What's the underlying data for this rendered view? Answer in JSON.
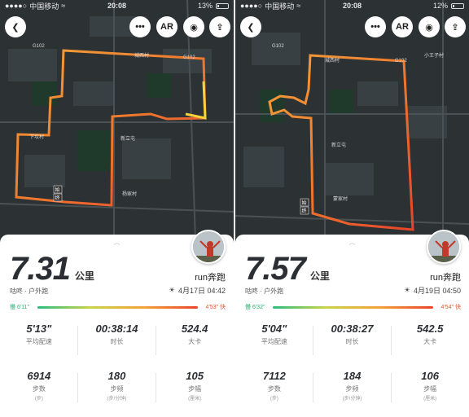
{
  "panels": [
    {
      "status": {
        "carrier": "中国移动",
        "time": "20:08",
        "battery": "13%",
        "battery_level": 0.13
      },
      "map_labels": [
        "G102",
        "G102",
        "城西村",
        "新立屯",
        "下坎村",
        "杨家村"
      ],
      "markers": [
        "始",
        "终"
      ],
      "top_buttons": {
        "more": "•••",
        "ar": "AR"
      },
      "distance": "7.31",
      "distance_unit": "公里",
      "activity": "咕咚 · 户外跑",
      "username": "run奔跑",
      "datetime": "4月17日 04:42",
      "pace_slow": "慢 6'11\"",
      "pace_fast": "4'53\" 快",
      "stats": [
        {
          "value": "5'13\"",
          "label": "平均配速",
          "sub": ""
        },
        {
          "value": "00:38:14",
          "label": "时长",
          "sub": ""
        },
        {
          "value": "524.4",
          "label": "大卡",
          "sub": ""
        },
        {
          "value": "6914",
          "label": "步数",
          "sub": "(步)"
        },
        {
          "value": "180",
          "label": "步频",
          "sub": "(步/分钟)"
        },
        {
          "value": "105",
          "label": "步幅",
          "sub": "(厘米)"
        }
      ]
    },
    {
      "status": {
        "carrier": "中国移动",
        "time": "20:08",
        "battery": "12%",
        "battery_level": 0.12
      },
      "map_labels": [
        "G102",
        "G102",
        "城西村",
        "小王子村",
        "新立屯",
        "蒙家村"
      ],
      "markers": [
        "始",
        "终"
      ],
      "top_buttons": {
        "more": "•••",
        "ar": "AR"
      },
      "distance": "7.57",
      "distance_unit": "公里",
      "activity": "咕咚 · 户外跑",
      "username": "run奔跑",
      "datetime": "4月19日 04:50",
      "pace_slow": "慢 6'32\"",
      "pace_fast": "4'54\" 快",
      "stats": [
        {
          "value": "5'04\"",
          "label": "平均配速",
          "sub": ""
        },
        {
          "value": "00:38:27",
          "label": "时长",
          "sub": ""
        },
        {
          "value": "542.5",
          "label": "大卡",
          "sub": ""
        },
        {
          "value": "7112",
          "label": "步数",
          "sub": "(步)"
        },
        {
          "value": "184",
          "label": "步频",
          "sub": "(步/分钟)"
        },
        {
          "value": "106",
          "label": "步幅",
          "sub": "(厘米)"
        }
      ]
    }
  ]
}
